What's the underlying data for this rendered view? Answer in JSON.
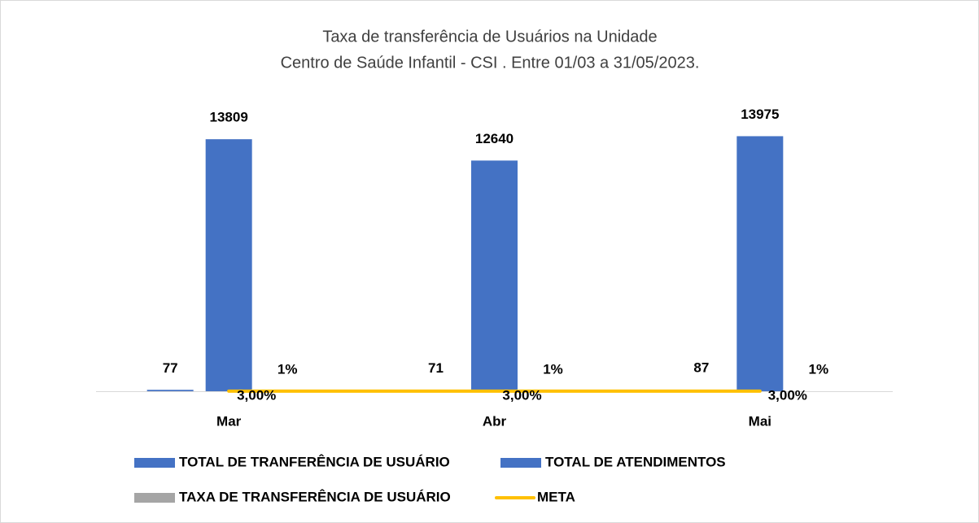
{
  "chart_data": {
    "type": "bar",
    "title": [
      "Taxa de transferência de Usuários na Unidade",
      "Centro de Saúde Infantil - CSI . Entre 01/03 a 31/05/2023."
    ],
    "categories": [
      "Mar",
      "Abr",
      "Mai"
    ],
    "series": [
      {
        "name": "TOTAL DE TRANFERÊNCIA DE USUÁRIO",
        "type": "bar",
        "color": "#4472c4",
        "values": [
          77,
          71,
          87
        ]
      },
      {
        "name": "TOTAL DE ATENDIMENTOS",
        "type": "bar",
        "color": "#4472c4",
        "values": [
          13809,
          12640,
          13975
        ]
      },
      {
        "name": "TAXA DE TRANSFERÊNCIA DE USUÁRIO",
        "type": "bar",
        "color": "#a5a5a5",
        "values": [
          0.56,
          0.56,
          0.62
        ],
        "value_labels": [
          "1%",
          "1%",
          "1%"
        ]
      },
      {
        "name": "META",
        "type": "line",
        "color": "#ffc000",
        "values": [
          3,
          3,
          3
        ],
        "value_labels": [
          "3,00%",
          "3,00%",
          "3,00%"
        ]
      }
    ],
    "ylim": [
      0,
      16000
    ],
    "legend": "bottom"
  }
}
